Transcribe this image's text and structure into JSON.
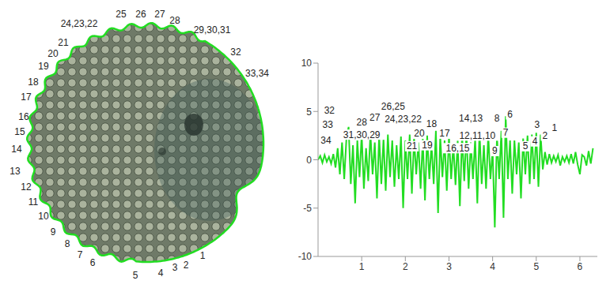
{
  "chart_data": {
    "type": "line",
    "color": "#22dd22",
    "x": [
      0,
      0.05,
      0.1,
      0.15,
      0.2,
      0.25,
      0.3,
      0.35,
      0.4,
      0.45,
      0.5,
      0.55,
      0.6,
      0.65,
      0.7,
      0.75,
      0.8,
      0.85,
      0.9,
      0.95,
      1,
      1.05,
      1.1,
      1.15,
      1.2,
      1.25,
      1.3,
      1.35,
      1.4,
      1.45,
      1.5,
      1.55,
      1.6,
      1.65,
      1.7,
      1.75,
      1.8,
      1.85,
      1.9,
      1.95,
      2,
      2.05,
      2.1,
      2.15,
      2.2,
      2.25,
      2.3,
      2.35,
      2.4,
      2.45,
      2.5,
      2.55,
      2.6,
      2.65,
      2.7,
      2.75,
      2.8,
      2.85,
      2.9,
      2.95,
      3,
      3.05,
      3.1,
      3.15,
      3.2,
      3.25,
      3.3,
      3.35,
      3.4,
      3.45,
      3.5,
      3.55,
      3.6,
      3.65,
      3.7,
      3.75,
      3.8,
      3.85,
      3.9,
      3.95,
      4,
      4.05,
      4.1,
      4.15,
      4.2,
      4.25,
      4.3,
      4.35,
      4.4,
      4.45,
      4.5,
      4.55,
      4.6,
      4.65,
      4.7,
      4.75,
      4.8,
      4.85,
      4.9,
      4.95,
      5,
      5.05,
      5.1,
      5.15,
      5.2,
      5.25,
      5.3,
      5.35,
      5.4,
      5.45,
      5.5,
      5.55,
      5.6,
      5.65,
      5.7,
      5.75,
      5.8,
      5.85,
      5.9,
      5.95,
      6,
      6.05,
      6.1,
      6.15,
      6.2,
      6.25,
      6.3
    ],
    "values": [
      0,
      0.4,
      -0.3,
      0.5,
      -0.2,
      0.3,
      -0.4,
      0.6,
      -0.8,
      1.2,
      -1.5,
      1.8,
      -2.0,
      2.2,
      3.4,
      -2.5,
      1.5,
      -4.5,
      2.0,
      -1.8,
      2.6,
      -3.0,
      1.2,
      -2.2,
      2.8,
      -1.5,
      1.8,
      -4.0,
      2.5,
      -2.5,
      2.2,
      -3.2,
      2.6,
      -1.8,
      2.0,
      -2.8,
      1.5,
      -2.0,
      2.4,
      -5.0,
      2.0,
      -2.0,
      2.6,
      -3.5,
      2.2,
      -1.5,
      1.8,
      -3.0,
      2.2,
      -4.2,
      2.5,
      -2.0,
      1.6,
      -2.5,
      3.0,
      -5.5,
      2.4,
      -1.8,
      2.0,
      -3.2,
      2.4,
      -2.0,
      1.6,
      -2.6,
      2.0,
      -4.8,
      2.6,
      -2.2,
      2.8,
      -3.0,
      1.8,
      -2.0,
      2.2,
      -4.5,
      3.0,
      -2.5,
      1.5,
      -3.0,
      2.6,
      -2.0,
      1.0,
      -7.0,
      2.5,
      -2.0,
      3.0,
      -6.0,
      4.5,
      -2.0,
      2.0,
      -3.5,
      2.0,
      -1.5,
      1.8,
      -4.0,
      2.2,
      -1.5,
      2.5,
      -2.5,
      2.6,
      -2.0,
      2.8,
      -2.8,
      2.6,
      -1.0,
      0.8,
      -0.5,
      0.6,
      -0.3,
      0.4,
      -0.2,
      0.5,
      -0.6,
      0.3,
      -0.2,
      0.4,
      -0.3,
      0.6,
      -0.4,
      0.8,
      -0.5,
      -1.5,
      0.5,
      0.3,
      -0.6,
      0.9,
      -0.4,
      1.2
    ],
    "xlim": [
      0,
      6.4
    ],
    "xticks": [
      1,
      2,
      3,
      4,
      5,
      6
    ],
    "ylim": [
      -10,
      10
    ],
    "yticks": [
      -10,
      -5,
      0,
      5,
      10
    ],
    "grid": false,
    "annotations": [
      {
        "text": "32",
        "x": 0.26,
        "y": 5.1
      },
      {
        "text": "33",
        "x": 0.22,
        "y": 3.6
      },
      {
        "text": "34",
        "x": 0.18,
        "y": 2.0
      },
      {
        "text": "28",
        "x": 1.0,
        "y": 3.9
      },
      {
        "text": "27",
        "x": 1.3,
        "y": 4.4
      },
      {
        "text": "31,30,29",
        "x": 1.0,
        "y": 2.6
      },
      {
        "text": "26,25",
        "x": 1.72,
        "y": 5.5
      },
      {
        "text": "24,23,22",
        "x": 1.95,
        "y": 4.2
      },
      {
        "text": "20",
        "x": 2.32,
        "y": 2.7
      },
      {
        "text": "21",
        "x": 2.15,
        "y": 1.4
      },
      {
        "text": "18",
        "x": 2.6,
        "y": 3.7
      },
      {
        "text": "17",
        "x": 2.9,
        "y": 2.7
      },
      {
        "text": "19",
        "x": 2.5,
        "y": 1.5
      },
      {
        "text": "16,15",
        "x": 3.2,
        "y": 1.2
      },
      {
        "text": "14,13",
        "x": 3.5,
        "y": 4.3
      },
      {
        "text": "12,11,10",
        "x": 3.65,
        "y": 2.5
      },
      {
        "text": "9",
        "x": 4.05,
        "y": 0.9
      },
      {
        "text": "8",
        "x": 4.1,
        "y": 4.3
      },
      {
        "text": "7",
        "x": 4.3,
        "y": 2.8
      },
      {
        "text": "6",
        "x": 4.4,
        "y": 4.7
      },
      {
        "text": "5",
        "x": 4.75,
        "y": 1.4
      },
      {
        "text": "4",
        "x": 4.97,
        "y": 1.9
      },
      {
        "text": "3",
        "x": 5.02,
        "y": 3.6
      },
      {
        "text": "2",
        "x": 5.2,
        "y": 2.5
      },
      {
        "text": "1",
        "x": 5.42,
        "y": 3.3
      }
    ]
  },
  "image": {
    "outline_color": "#22dd22",
    "outline_labels": [
      "1",
      "2",
      "3",
      "4",
      "5",
      "6",
      "7",
      "8",
      "9",
      "10",
      "11",
      "12",
      "13",
      "14",
      "15",
      "16",
      "17",
      "18",
      "19",
      "20",
      "21",
      "24,23,22",
      "25",
      "26",
      "27",
      "28",
      "29,30,31",
      "32",
      "33,34"
    ]
  }
}
